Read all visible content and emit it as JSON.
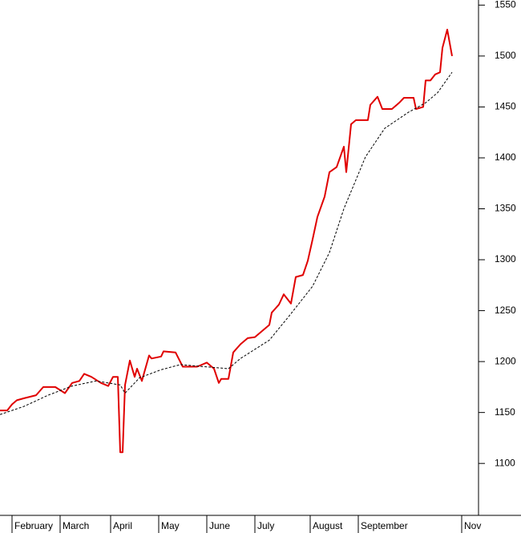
{
  "chart_data": {
    "type": "line",
    "xlim": [
      0,
      199
    ],
    "ylim": [
      1049,
      1555
    ],
    "xticks": [
      {
        "value": 5,
        "label": "February"
      },
      {
        "value": 25,
        "label": "March"
      },
      {
        "value": 46,
        "label": "April"
      },
      {
        "value": 66,
        "label": "May"
      },
      {
        "value": 86,
        "label": "June"
      },
      {
        "value": 106,
        "label": "July"
      },
      {
        "value": 129,
        "label": "August"
      },
      {
        "value": 149,
        "label": "September"
      },
      {
        "value": 192,
        "label": "Nov"
      }
    ],
    "yticks": [
      1100,
      1150,
      1200,
      1250,
      1300,
      1350,
      1400,
      1450,
      1500,
      1550
    ],
    "grid": false,
    "series": [
      {
        "color": "#e00000",
        "dashed": false,
        "x": [
          0,
          3,
          5,
          7,
          10,
          15,
          18,
          23,
          27,
          30,
          33,
          35,
          38,
          42,
          45,
          47,
          49,
          50,
          51,
          52,
          54,
          56,
          57,
          59,
          62,
          63,
          67,
          68,
          73,
          76,
          82,
          86,
          89,
          91,
          92,
          95,
          97,
          100,
          103,
          106,
          109,
          112,
          113,
          116,
          118,
          121,
          123,
          126,
          128,
          130,
          132,
          135,
          137,
          140,
          143,
          144,
          146,
          148,
          153,
          154,
          157,
          159,
          163,
          166,
          168,
          172,
          173,
          176,
          177,
          179,
          181,
          183,
          184,
          186,
          188
        ],
        "values": [
          1152,
          1152,
          1158,
          1162,
          1164,
          1167,
          1175,
          1175,
          1169,
          1179,
          1181,
          1188,
          1185,
          1179,
          1176,
          1185,
          1185,
          1111,
          1111,
          1177,
          1201,
          1185,
          1193,
          1181,
          1206,
          1203,
          1205,
          1210,
          1209,
          1195,
          1195,
          1199,
          1193,
          1179,
          1183,
          1183,
          1209,
          1217,
          1223,
          1224,
          1230,
          1236,
          1248,
          1256,
          1266,
          1257,
          1283,
          1285,
          1299,
          1320,
          1342,
          1362,
          1386,
          1391,
          1411,
          1386,
          1433,
          1437,
          1437,
          1452,
          1460,
          1448,
          1448,
          1454,
          1459,
          1459,
          1448,
          1450,
          1476,
          1476,
          1482,
          1484,
          1508,
          1526,
          1500
        ]
      },
      {
        "color": "#000000",
        "dashed": true,
        "x": [
          0,
          10,
          20,
          30,
          40,
          50,
          52,
          58,
          67,
          75,
          85,
          95,
          100,
          112,
          120,
          130,
          137,
          143,
          152,
          160,
          170,
          177,
          182,
          188
        ],
        "values": [
          1148,
          1156,
          1167,
          1176,
          1181,
          1177,
          1169,
          1184,
          1192,
          1197,
          1195,
          1193,
          1203,
          1221,
          1244,
          1274,
          1307,
          1350,
          1401,
          1429,
          1445,
          1454,
          1464,
          1484
        ]
      }
    ]
  }
}
